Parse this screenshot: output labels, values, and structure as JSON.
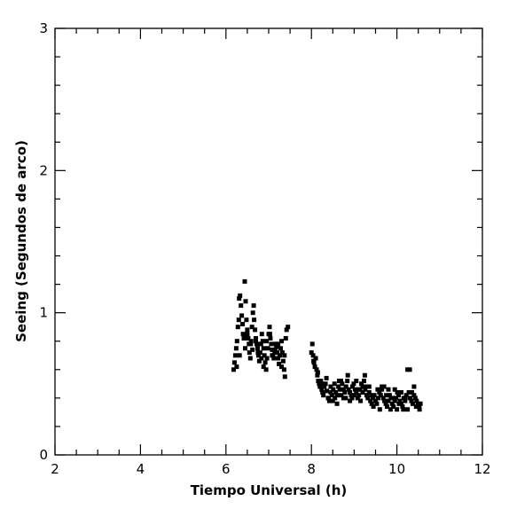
{
  "chart_data": {
    "type": "scatter",
    "xlabel": "Tiempo Universal (h)",
    "ylabel": "Seeing (Segundos de arco)",
    "xlim": [
      2,
      12
    ],
    "ylim": [
      0,
      3
    ],
    "x_ticks": [
      2,
      4,
      6,
      8,
      10,
      12
    ],
    "y_ticks": [
      0,
      1,
      2,
      3
    ],
    "x_minor_step": 0.5,
    "y_minor_step": 0.2,
    "grid": false,
    "marker": "filled-square",
    "marker_color": "#000000",
    "series": [
      {
        "x": [
          6.18,
          6.2,
          6.22,
          6.24,
          6.26,
          6.28,
          6.3,
          6.31,
          6.33,
          6.35,
          6.37,
          6.39,
          6.4,
          6.42,
          6.44,
          6.46,
          6.48,
          6.5,
          6.52,
          6.54,
          6.55,
          6.57,
          6.59,
          6.61,
          6.63,
          6.65,
          6.66,
          6.68,
          6.7,
          6.72,
          6.74,
          6.76,
          6.78,
          6.8,
          6.82,
          6.84,
          6.86,
          6.88,
          6.9,
          6.92,
          6.94,
          6.96,
          6.98,
          7.0,
          7.02,
          7.04,
          7.06,
          7.08,
          7.1,
          7.12,
          7.14,
          7.16,
          7.18,
          7.2,
          7.22,
          7.24,
          7.26,
          7.28,
          7.3,
          7.32,
          7.34,
          7.36,
          7.38,
          7.4,
          7.42,
          7.45,
          6.25,
          6.32,
          6.45,
          6.5,
          6.58,
          6.62,
          6.7,
          6.75,
          6.83,
          6.88,
          6.95,
          7.03,
          7.08,
          7.15,
          7.22,
          7.3,
          7.37
        ],
        "y": [
          0.6,
          0.65,
          0.7,
          0.75,
          0.8,
          0.9,
          0.95,
          1.1,
          1.12,
          1.05,
          0.98,
          0.92,
          0.85,
          0.82,
          1.22,
          1.08,
          0.95,
          0.88,
          0.82,
          0.78,
          0.72,
          0.68,
          0.8,
          0.9,
          1.0,
          1.05,
          0.95,
          0.88,
          0.82,
          0.78,
          0.75,
          0.7,
          0.66,
          0.72,
          0.78,
          0.85,
          0.8,
          0.75,
          0.7,
          0.65,
          0.6,
          0.68,
          0.75,
          0.85,
          0.9,
          0.82,
          0.78,
          0.74,
          0.7,
          0.68,
          0.72,
          0.78,
          0.76,
          0.72,
          0.68,
          0.64,
          0.7,
          0.75,
          0.8,
          0.72,
          0.66,
          0.6,
          0.55,
          0.82,
          0.88,
          0.9,
          0.62,
          0.7,
          0.75,
          0.85,
          0.78,
          0.74,
          0.8,
          0.72,
          0.68,
          0.62,
          0.8,
          0.85,
          0.7,
          0.74,
          0.78,
          0.62,
          0.7
        ]
      },
      {
        "x": [
          8.0,
          8.02,
          8.04,
          8.06,
          8.08,
          8.1,
          8.12,
          8.14,
          8.16,
          8.18,
          8.2,
          8.22,
          8.24,
          8.26,
          8.28,
          8.3,
          8.33,
          8.36,
          8.39,
          8.42,
          8.45,
          8.48,
          8.51,
          8.54,
          8.57,
          8.6,
          8.63,
          8.66,
          8.69,
          8.72,
          8.75,
          8.78,
          8.81,
          8.84,
          8.87,
          8.9,
          8.93,
          8.96,
          8.99,
          9.02,
          9.05,
          9.08,
          9.11,
          9.14,
          9.17,
          9.2,
          9.23,
          9.26,
          9.29,
          9.32,
          9.35,
          9.38,
          9.41,
          9.44,
          9.47,
          9.5,
          9.53,
          9.56,
          9.59,
          9.62,
          9.65,
          9.68,
          9.71,
          9.74,
          9.77,
          9.8,
          9.83,
          9.86,
          9.89,
          9.92,
          9.95,
          9.98,
          10.01,
          10.04,
          10.07,
          10.1,
          10.13,
          10.16,
          10.19,
          10.22,
          10.25,
          10.28,
          10.31,
          10.34,
          10.37,
          10.4,
          10.43,
          10.46,
          10.49,
          10.52,
          10.55,
          8.05,
          8.15,
          8.25,
          8.35,
          8.45,
          8.55,
          8.65,
          8.75,
          8.85,
          8.95,
          9.05,
          9.15,
          9.25,
          9.35,
          9.45,
          9.55,
          9.65,
          9.75,
          9.85,
          9.95,
          10.05,
          10.15,
          10.2,
          10.25,
          10.3,
          10.35,
          10.45,
          10.5,
          8.4,
          8.5,
          8.6,
          8.7,
          8.8,
          8.9,
          9.0,
          9.1,
          9.2,
          9.3,
          9.4,
          9.6,
          9.7,
          9.8,
          9.9,
          10.0,
          10.1,
          10.4,
          10.53
        ],
        "y": [
          0.72,
          0.78,
          0.7,
          0.65,
          0.62,
          0.68,
          0.6,
          0.56,
          0.52,
          0.5,
          0.48,
          0.52,
          0.46,
          0.44,
          0.42,
          0.48,
          0.5,
          0.45,
          0.4,
          0.38,
          0.44,
          0.42,
          0.46,
          0.5,
          0.44,
          0.42,
          0.48,
          0.46,
          0.52,
          0.5,
          0.46,
          0.44,
          0.48,
          0.52,
          0.46,
          0.44,
          0.42,
          0.48,
          0.5,
          0.46,
          0.44,
          0.4,
          0.42,
          0.46,
          0.5,
          0.48,
          0.52,
          0.46,
          0.42,
          0.4,
          0.44,
          0.38,
          0.36,
          0.4,
          0.42,
          0.38,
          0.36,
          0.4,
          0.44,
          0.42,
          0.46,
          0.4,
          0.38,
          0.36,
          0.34,
          0.38,
          0.42,
          0.4,
          0.36,
          0.34,
          0.38,
          0.4,
          0.44,
          0.42,
          0.38,
          0.36,
          0.34,
          0.4,
          0.38,
          0.42,
          0.6,
          0.44,
          0.4,
          0.38,
          0.36,
          0.42,
          0.4,
          0.38,
          0.36,
          0.34,
          0.36,
          0.66,
          0.58,
          0.5,
          0.54,
          0.48,
          0.4,
          0.52,
          0.4,
          0.56,
          0.4,
          0.52,
          0.38,
          0.56,
          0.48,
          0.34,
          0.46,
          0.48,
          0.42,
          0.32,
          0.46,
          0.36,
          0.32,
          0.4,
          0.32,
          0.6,
          0.44,
          0.34,
          0.36,
          0.4,
          0.38,
          0.36,
          0.42,
          0.4,
          0.38,
          0.42,
          0.46,
          0.44,
          0.48,
          0.42,
          0.32,
          0.48,
          0.46,
          0.4,
          0.32,
          0.44,
          0.48,
          0.32
        ]
      }
    ]
  }
}
